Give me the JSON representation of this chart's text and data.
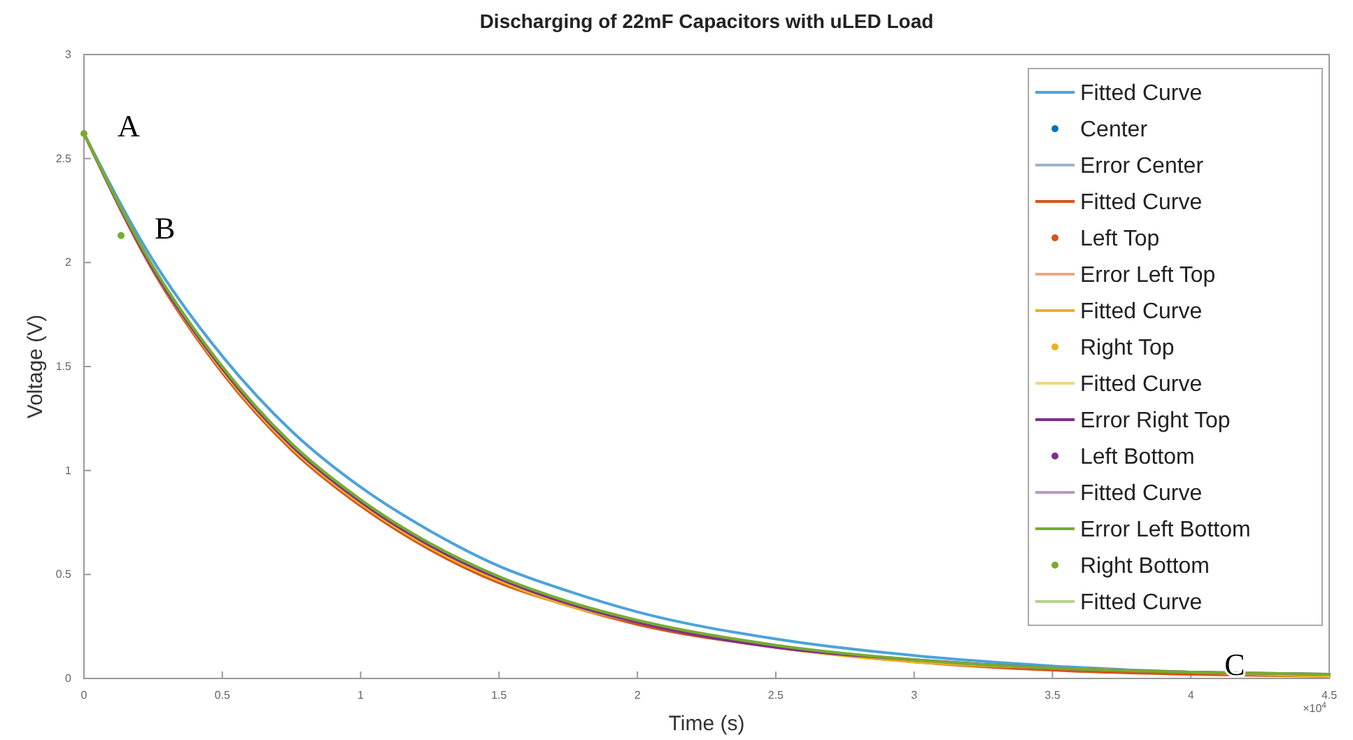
{
  "chart_data": {
    "type": "line",
    "title": "Discharging of 22mF Capacitors with uLED Load",
    "xlabel": "Time (s)",
    "ylabel": "Voltage (V)",
    "xlim": [
      0,
      4.5
    ],
    "xticks": [
      0,
      0.5,
      1,
      1.5,
      2,
      2.5,
      3,
      3.5,
      4,
      4.5
    ],
    "ylim": [
      0,
      3
    ],
    "yticks": [
      0,
      0.5,
      1,
      1.5,
      2,
      2.5,
      3
    ],
    "x": [
      0,
      0.25,
      0.5,
      0.75,
      1,
      1.25,
      1.5,
      1.75,
      2,
      2.5,
      3,
      3.5,
      4,
      4.5
    ],
    "grid": false,
    "legend": "top right",
    "annotations": [
      {
        "text": "A",
        "x": 0,
        "y": 2.62
      },
      {
        "text": "B",
        "x": 0.134,
        "y": 2.13
      },
      {
        "text": "C",
        "x": 4,
        "y": 0.03
      },
      "×10$^{4}$"
    ],
    "series": [
      {
        "name": "Fitted Curve",
        "color": "#4da3d9",
        "values": [
          2.62,
          2.01,
          1.55,
          1.19,
          0.92,
          0.71,
          0.54,
          0.42,
          0.32,
          0.19,
          0.11,
          0.06,
          0.03,
          0.02
        ]
      },
      {
        "name": "Center",
        "type": "scatter",
        "color": "#0072bd",
        "values": [
          null,
          null,
          null,
          null,
          null,
          null,
          null,
          null,
          null,
          null,
          null,
          null,
          null,
          null
        ]
      },
      {
        "name": "Error Center",
        "color": "#9fb3c8",
        "values": [
          null,
          null,
          null,
          null,
          null,
          null,
          null,
          null,
          null,
          null,
          null,
          null,
          null,
          null
        ]
      },
      {
        "name": "Fitted Curve",
        "color": "#d95319",
        "values": [
          2.62,
          1.96,
          1.47,
          1.1,
          0.83,
          0.62,
          0.46,
          0.35,
          0.26,
          0.15,
          0.08,
          0.04,
          0.02,
          0.01
        ]
      },
      {
        "name": "Left Top",
        "type": "scatter",
        "color": "#d95319",
        "values": [
          null,
          null,
          null,
          null,
          null,
          null,
          null,
          null,
          null,
          null,
          null,
          null,
          null,
          null
        ]
      },
      {
        "name": "Error Left Top",
        "color": "#e8a98a",
        "values": [
          null,
          null,
          null,
          null,
          null,
          null,
          null,
          null,
          null,
          null,
          null,
          null,
          null,
          null
        ]
      },
      {
        "name": "Fitted Curve",
        "color": "#edb120",
        "values": [
          2.62,
          1.97,
          1.48,
          1.11,
          0.84,
          0.63,
          0.47,
          0.35,
          0.27,
          0.15,
          0.08,
          0.05,
          0.03,
          0.01
        ]
      },
      {
        "name": "Right Top",
        "type": "scatter",
        "color": "#edb120",
        "values": [
          null,
          null,
          null,
          null,
          null,
          null,
          null,
          null,
          null,
          null,
          null,
          null,
          null,
          null
        ]
      },
      {
        "name": "Fitted Curve",
        "color": "#f2d38c",
        "values": [
          null,
          null,
          null,
          null,
          null,
          null,
          null,
          null,
          null,
          null,
          null,
          null,
          null,
          null
        ]
      },
      {
        "name": "Error Right Top",
        "color": "#7e2f8e",
        "values": [
          2.62,
          1.97,
          1.49,
          1.12,
          0.85,
          0.64,
          0.48,
          0.36,
          0.27,
          0.15,
          0.09,
          0.05,
          0.03,
          0.02
        ]
      },
      {
        "name": "Left Bottom",
        "type": "scatter",
        "color": "#7e2f8e",
        "values": [
          null,
          null,
          null,
          null,
          null,
          null,
          null,
          null,
          null,
          null,
          null,
          null,
          null,
          null
        ]
      },
      {
        "name": "Fitted Curve",
        "color": "#bb98c2",
        "values": [
          null,
          null,
          null,
          null,
          null,
          null,
          null,
          null,
          null,
          null,
          null,
          null,
          null,
          null
        ]
      },
      {
        "name": "Error Left Bottom",
        "color": "#77ac30",
        "values": [
          2.62,
          1.98,
          1.5,
          1.13,
          0.86,
          0.65,
          0.49,
          0.37,
          0.28,
          0.16,
          0.09,
          0.05,
          0.03,
          0.02
        ]
      },
      {
        "name": "Right Bottom",
        "type": "scatter",
        "color": "#77ac30",
        "x": [
          0,
          0.134
        ],
        "values": [
          2.62,
          2.13
        ]
      },
      {
        "name": "Fitted Curve",
        "color": "#b5d18f",
        "values": [
          null,
          null,
          null,
          null,
          null,
          null,
          null,
          null,
          null,
          null,
          null,
          null,
          null,
          null
        ]
      }
    ]
  }
}
